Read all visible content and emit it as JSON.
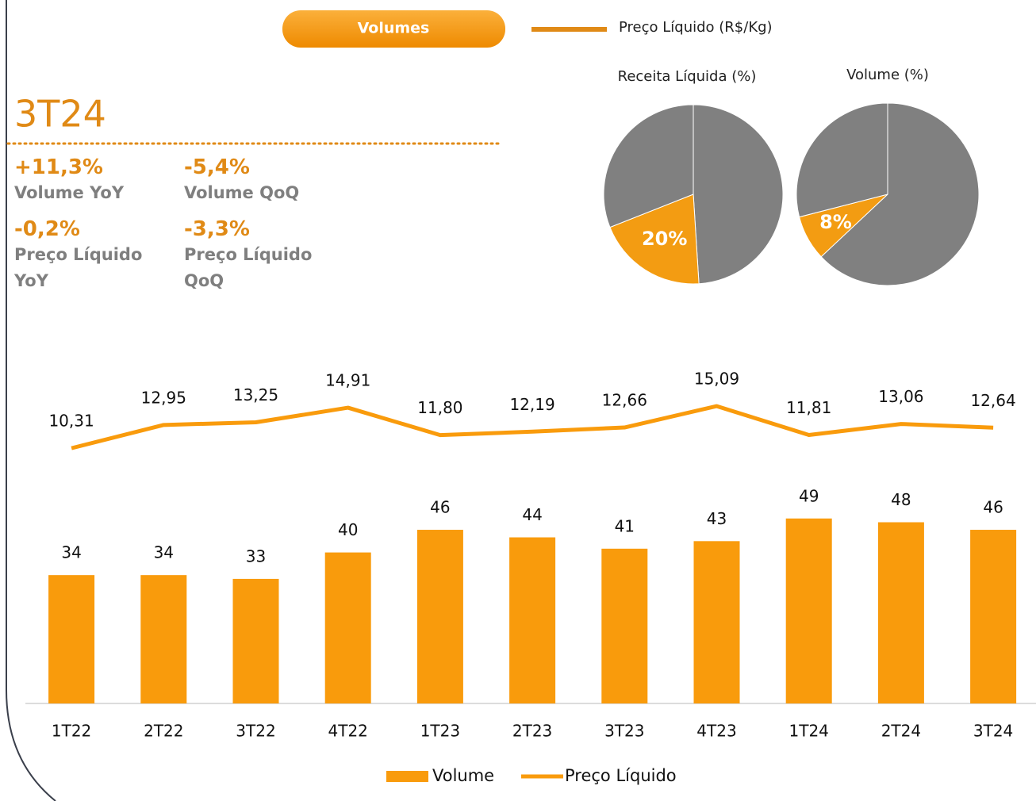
{
  "header": {
    "button": "Volumes",
    "legend": "Preço Líquido (R$/Kg)"
  },
  "period": "3T24",
  "kpis": [
    {
      "value": "+11,3%",
      "label": "Volume YoY"
    },
    {
      "value": "-5,4%",
      "label": "Volume QoQ"
    },
    {
      "value": "-0,2%",
      "label": "Preço Líquido YoY"
    },
    {
      "value": "-3,3%",
      "label": "Preço Líquido QoQ"
    }
  ],
  "chart_data": [
    {
      "type": "pie",
      "title": "Receita Líquida (%)",
      "values": [
        49,
        20,
        31
      ],
      "value_labels": [
        null,
        "20%",
        null
      ],
      "colors": [
        "#808080",
        "#f39c12",
        "#808080"
      ]
    },
    {
      "type": "pie",
      "title": "Volume (%)",
      "values": [
        63,
        8,
        29
      ],
      "value_labels": [
        null,
        "8%",
        null
      ],
      "colors": [
        "#808080",
        "#f39c12",
        "#808080"
      ]
    },
    {
      "type": "bar-line",
      "categories": [
        "1T22",
        "2T22",
        "3T22",
        "4T22",
        "1T23",
        "2T23",
        "3T23",
        "4T23",
        "1T24",
        "2T24",
        "3T24"
      ],
      "series": [
        {
          "name": "Volume",
          "color": "#f99b0c",
          "values": [
            34,
            34,
            33,
            40,
            46,
            44,
            41,
            43,
            49,
            48,
            46
          ]
        },
        {
          "name": "Preço Líquido",
          "color": "#f99b0c",
          "axis": "y2",
          "values": [
            10.31,
            12.95,
            13.25,
            14.91,
            11.8,
            12.19,
            12.66,
            15.09,
            11.81,
            13.06,
            12.64
          ],
          "value_labels": [
            "10,31",
            "12,95",
            "13,25",
            "14,91",
            "11,80",
            "12,19",
            "12,66",
            "15,09",
            "11,81",
            "13,06",
            "12,64"
          ]
        }
      ],
      "ylim": [
        0,
        100
      ],
      "y2lim": [
        -18.7,
        24.2
      ],
      "legend": "bottom"
    }
  ]
}
